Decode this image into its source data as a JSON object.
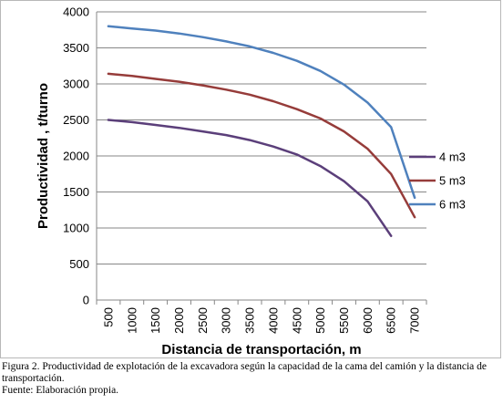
{
  "chart_data": {
    "type": "line",
    "title": "",
    "xlabel": "Distancia de transportación, m",
    "ylabel": "Productividad , t/turno",
    "x": [
      500,
      1000,
      1500,
      2000,
      2500,
      3000,
      3500,
      4000,
      4500,
      5000,
      5500,
      6000,
      6500,
      7000
    ],
    "ylim": [
      0,
      4000
    ],
    "yticks": [
      0,
      500,
      1000,
      1500,
      2000,
      2500,
      3000,
      3500,
      4000
    ],
    "grid": "horizontal",
    "legend_position": "right",
    "series": [
      {
        "name": "4 m3",
        "color": "#5b3f7a",
        "values": [
          2500,
          2470,
          2430,
          2390,
          2340,
          2290,
          2220,
          2130,
          2020,
          1860,
          1650,
          1370,
          890,
          null
        ]
      },
      {
        "name": "5 m3",
        "color": "#963c3a",
        "values": [
          3140,
          3110,
          3070,
          3030,
          2980,
          2920,
          2850,
          2760,
          2650,
          2520,
          2340,
          2100,
          1750,
          1150
        ]
      },
      {
        "name": "6 m3",
        "color": "#4f81bd",
        "values": [
          3800,
          3770,
          3740,
          3700,
          3650,
          3590,
          3520,
          3430,
          3320,
          3180,
          2990,
          2740,
          2400,
          1420
        ]
      }
    ]
  },
  "caption": {
    "figure_text": "Figura 2. Productividad de explotación de la excavadora según la capacidad de la cama del camión y la distancia de transportación.",
    "source_text": "Fuente: Elaboración propia."
  }
}
